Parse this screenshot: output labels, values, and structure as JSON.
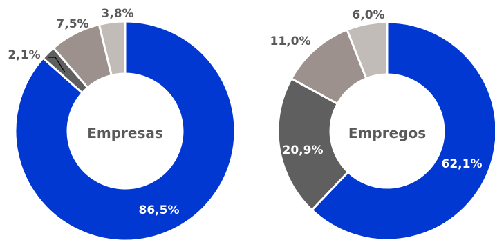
{
  "chart_data": [
    {
      "type": "pie",
      "title": "Empresas",
      "slices": [
        {
          "label": "86,5%",
          "value": 86.5,
          "color": "#0038d1",
          "label_color": "#ffffff"
        },
        {
          "label": "2,1%",
          "value": 2.1,
          "color": "#5f5f5f",
          "label_color": "#595959"
        },
        {
          "label": "7,5%",
          "value": 7.5,
          "color": "#9c918c",
          "label_color": "#595959"
        },
        {
          "label": "3,8%",
          "value": 3.8,
          "color": "#c2bcb9",
          "label_color": "#595959"
        }
      ]
    },
    {
      "type": "pie",
      "title": "Empregos",
      "slices": [
        {
          "label": "62,1%",
          "value": 62.1,
          "color": "#0038d1",
          "label_color": "#ffffff"
        },
        {
          "label": "20,9%",
          "value": 20.9,
          "color": "#5f5f5f",
          "label_color": "#ffffff"
        },
        {
          "label": "11,0%",
          "value": 11.0,
          "color": "#9c918c",
          "label_color": "#595959"
        },
        {
          "label": "6,0%",
          "value": 6.0,
          "color": "#c2bcb9",
          "label_color": "#595959"
        }
      ]
    }
  ]
}
